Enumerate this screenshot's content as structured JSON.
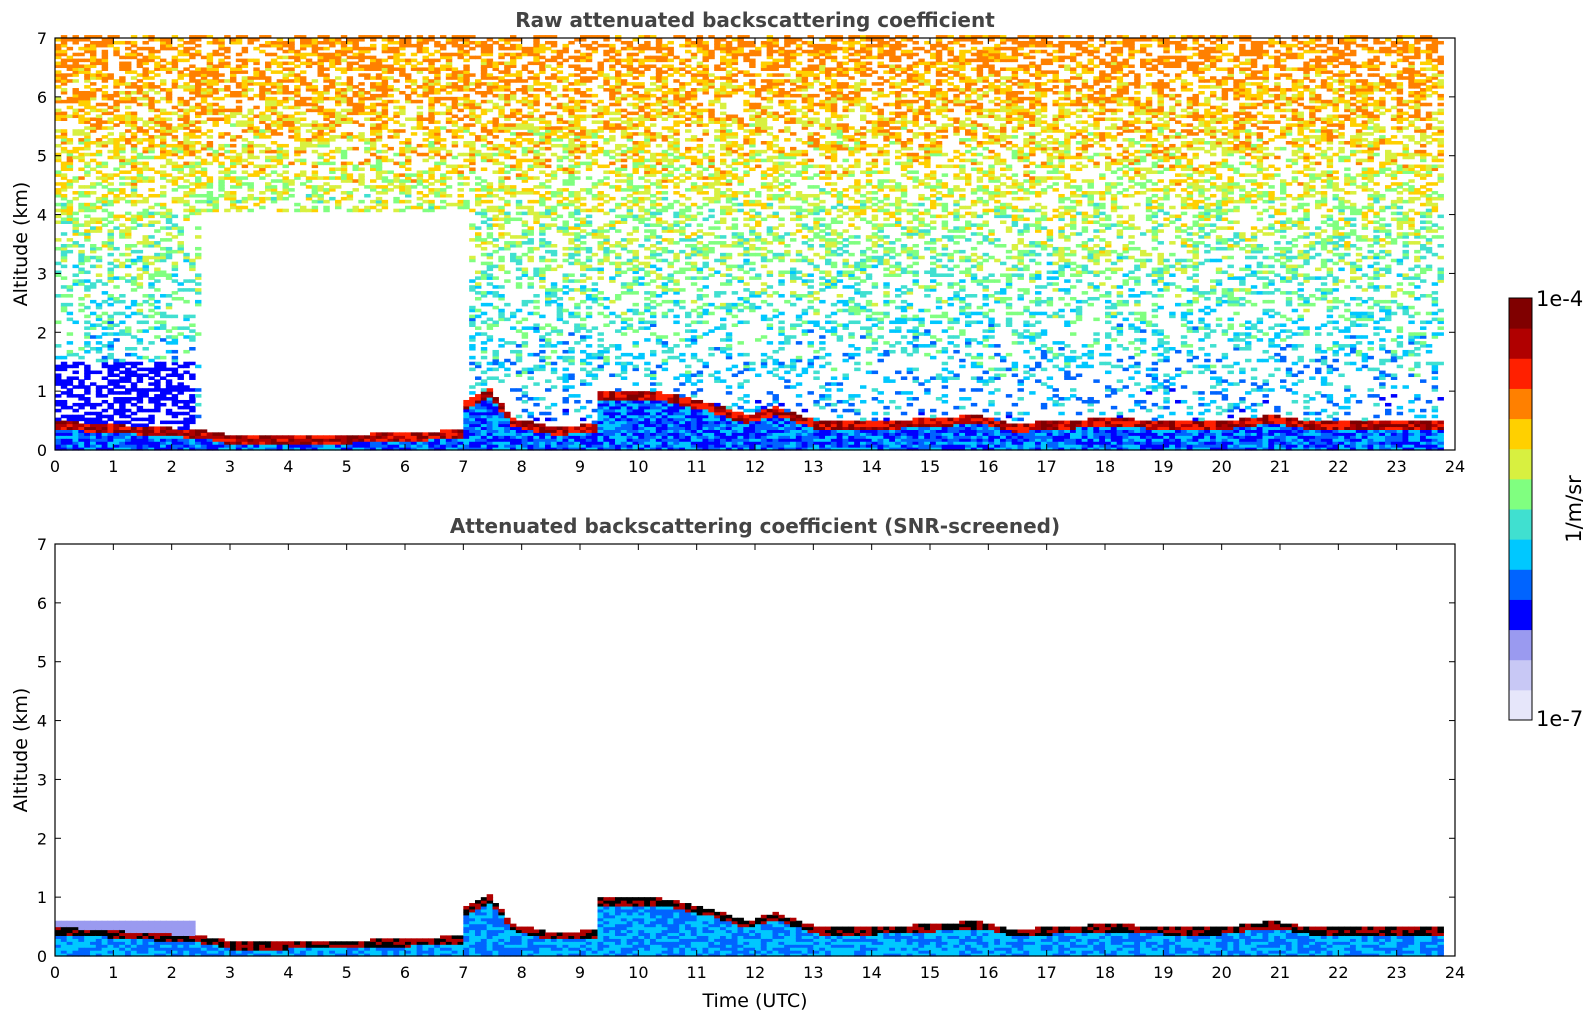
{
  "chart_data": [
    {
      "type": "heatmap",
      "title": "Raw attenuated backscattering coefficient",
      "xlabel": "",
      "ylabel": "Altitude (km)",
      "xlim": [
        0,
        24
      ],
      "ylim": [
        0,
        7
      ],
      "x_ticks": [
        "0",
        "1",
        "2",
        "3",
        "4",
        "5",
        "6",
        "7",
        "8",
        "9",
        "10",
        "11",
        "12",
        "13",
        "14",
        "15",
        "16",
        "17",
        "18",
        "19",
        "20",
        "21",
        "22",
        "23",
        "24"
      ],
      "y_ticks": [
        "0",
        "1",
        "2",
        "3",
        "4",
        "5",
        "6",
        "7"
      ],
      "data_extent_hours": [
        0,
        23.8
      ],
      "layer_top_km": [
        [
          0,
          0.45
        ],
        [
          2.5,
          0.3
        ],
        [
          3.0,
          0.2
        ],
        [
          4.0,
          0.2
        ],
        [
          5.0,
          0.22
        ],
        [
          6.0,
          0.25
        ],
        [
          6.9,
          0.3
        ],
        [
          7.0,
          0.8
        ],
        [
          7.4,
          1.0
        ],
        [
          7.8,
          0.5
        ],
        [
          8.5,
          0.35
        ],
        [
          9.2,
          0.4
        ],
        [
          9.3,
          0.95
        ],
        [
          10.3,
          0.95
        ],
        [
          11.2,
          0.75
        ],
        [
          11.8,
          0.55
        ],
        [
          12.3,
          0.7
        ],
        [
          13.0,
          0.45
        ],
        [
          14.0,
          0.45
        ],
        [
          15.0,
          0.5
        ],
        [
          15.8,
          0.55
        ],
        [
          16.4,
          0.4
        ],
        [
          17.0,
          0.45
        ],
        [
          18.0,
          0.5
        ],
        [
          19.0,
          0.45
        ],
        [
          20.0,
          0.45
        ],
        [
          20.8,
          0.55
        ],
        [
          21.5,
          0.45
        ],
        [
          22.5,
          0.45
        ],
        [
          23.8,
          0.45
        ]
      ]
    },
    {
      "type": "heatmap",
      "title": "Attenuated backscattering coefficient (SNR-screened)",
      "xlabel": "Time (UTC)",
      "ylabel": "Altitude (km)",
      "xlim": [
        0,
        24
      ],
      "ylim": [
        0,
        7
      ],
      "x_ticks": [
        "0",
        "1",
        "2",
        "3",
        "4",
        "5",
        "6",
        "7",
        "8",
        "9",
        "10",
        "11",
        "12",
        "13",
        "14",
        "15",
        "16",
        "17",
        "18",
        "19",
        "20",
        "21",
        "22",
        "23",
        "24"
      ],
      "y_ticks": [
        "0",
        "1",
        "2",
        "3",
        "4",
        "5",
        "6",
        "7"
      ],
      "data_extent_hours": [
        0,
        23.8
      ]
    }
  ],
  "colorbar": {
    "label": "1/m/sr",
    "max_label": "1e-4",
    "min_label": "1e-7",
    "colors": [
      "#e6e6fa",
      "#c8c8f5",
      "#9a9af0",
      "#0000ff",
      "#0064ff",
      "#00c8ff",
      "#40e0d0",
      "#80ff80",
      "#d8f040",
      "#ffd000",
      "#ff8000",
      "#ff2000",
      "#b00000",
      "#800000"
    ]
  }
}
